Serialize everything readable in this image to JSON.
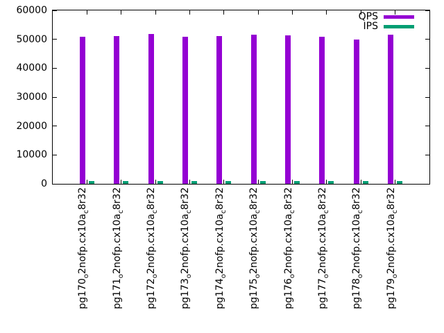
{
  "chart_data": {
    "type": "bar",
    "title": "",
    "xlabel": "",
    "ylabel": "",
    "ylim": [
      0,
      60000
    ],
    "yticks": [
      0,
      10000,
      20000,
      30000,
      40000,
      50000,
      60000
    ],
    "grid": false,
    "legend_position": "top-right-inside",
    "axis_color": "#000000",
    "text_color": "#000000",
    "background_color": "#ffffff",
    "categories": [
      "pg170_o2nofp.cx10a_c8r32",
      "pg171_o2nofp.cx10a_c8r32",
      "pg172_o2nofp.cx10a_c8r32",
      "pg173_o2nofp.cx10a_c8r32",
      "pg174_o2nofp.cx10a_c8r32",
      "pg175_o2nofp.cx10a_c8r32",
      "pg176_o2nofp.cx10a_c8r32",
      "pg177_o2nofp.cx10a_c8r32",
      "pg178_o2nofp.cx10a_c8r32",
      "pg179_o2nofp.cx10a_c8r32"
    ],
    "category_display": [
      [
        {
          "t": "pg170"
        },
        {
          "t": "o",
          "sub": true
        },
        {
          "t": "2nofp.cx10a"
        },
        {
          "t": "c",
          "sub": true
        },
        {
          "t": "8r32"
        }
      ],
      [
        {
          "t": "pg171"
        },
        {
          "t": "o",
          "sub": true
        },
        {
          "t": "2nofp.cx10a"
        },
        {
          "t": "c",
          "sub": true
        },
        {
          "t": "8r32"
        }
      ],
      [
        {
          "t": "pg172"
        },
        {
          "t": "o",
          "sub": true
        },
        {
          "t": "2nofp.cx10a"
        },
        {
          "t": "c",
          "sub": true
        },
        {
          "t": "8r32"
        }
      ],
      [
        {
          "t": "pg173"
        },
        {
          "t": "o",
          "sub": true
        },
        {
          "t": "2nofp.cx10a"
        },
        {
          "t": "c",
          "sub": true
        },
        {
          "t": "8r32"
        }
      ],
      [
        {
          "t": "pg174"
        },
        {
          "t": "o",
          "sub": true
        },
        {
          "t": "2nofp.cx10a"
        },
        {
          "t": "c",
          "sub": true
        },
        {
          "t": "8r32"
        }
      ],
      [
        {
          "t": "pg175"
        },
        {
          "t": "o",
          "sub": true
        },
        {
          "t": "2nofp.cx10a"
        },
        {
          "t": "c",
          "sub": true
        },
        {
          "t": "8r32"
        }
      ],
      [
        {
          "t": "pg176"
        },
        {
          "t": "o",
          "sub": true
        },
        {
          "t": "2nofp.cx10a"
        },
        {
          "t": "c",
          "sub": true
        },
        {
          "t": "8r32"
        }
      ],
      [
        {
          "t": "pg177"
        },
        {
          "t": "o",
          "sub": true
        },
        {
          "t": "2nofp.cx10a"
        },
        {
          "t": "c",
          "sub": true
        },
        {
          "t": "8r32"
        }
      ],
      [
        {
          "t": "pg178"
        },
        {
          "t": "o",
          "sub": true
        },
        {
          "t": "2nofp.cx10a"
        },
        {
          "t": "c",
          "sub": true
        },
        {
          "t": "8r32"
        }
      ],
      [
        {
          "t": "pg179"
        },
        {
          "t": "o",
          "sub": true
        },
        {
          "t": "2nofp.cx10a"
        },
        {
          "t": "c",
          "sub": true
        },
        {
          "t": "8r32"
        }
      ]
    ],
    "series": [
      {
        "name": "QPS",
        "color": "#9400D3",
        "values": [
          50900,
          51200,
          51800,
          51000,
          51200,
          51600,
          51300,
          51000,
          49900,
          51600
        ]
      },
      {
        "name": "IPS",
        "color": "#009E73",
        "values": [
          900,
          900,
          900,
          900,
          900,
          900,
          900,
          900,
          900,
          900
        ]
      }
    ]
  }
}
